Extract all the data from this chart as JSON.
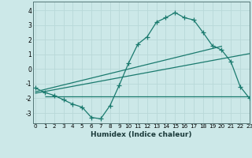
{
  "xlabel": "Humidex (Indice chaleur)",
  "bg_color": "#cce8e8",
  "grid_color": "#b8d8d8",
  "line_color": "#1a7a6e",
  "curve1_x": [
    0,
    1,
    2,
    3,
    4,
    5,
    6,
    7,
    8,
    9,
    10,
    11,
    12,
    13,
    14,
    15,
    16,
    17,
    18,
    19,
    20,
    21,
    22,
    23
  ],
  "curve1_y": [
    -1.3,
    -1.6,
    -1.8,
    -2.1,
    -2.4,
    -2.6,
    -3.3,
    -3.4,
    -2.5,
    -1.1,
    0.4,
    1.7,
    2.2,
    3.2,
    3.5,
    3.85,
    3.5,
    3.35,
    2.5,
    1.6,
    1.3,
    0.5,
    -1.2,
    -2.0
  ],
  "line1_x": [
    0,
    20
  ],
  "line1_y": [
    -1.55,
    1.55
  ],
  "line2_x": [
    0,
    23
  ],
  "line2_y": [
    -1.65,
    1.05
  ],
  "hline_y": -1.85,
  "hline_x": [
    1,
    23
  ],
  "ylim": [
    -3.7,
    4.6
  ],
  "xlim": [
    -0.3,
    23
  ],
  "yticks": [
    -3,
    -2,
    -1,
    0,
    1,
    2,
    3,
    4
  ],
  "xticks": [
    0,
    1,
    2,
    3,
    4,
    5,
    6,
    7,
    8,
    9,
    10,
    11,
    12,
    13,
    14,
    15,
    16,
    17,
    18,
    19,
    20,
    21,
    22,
    23
  ],
  "tick_fontsize": 5.5,
  "xlabel_fontsize": 6.5
}
